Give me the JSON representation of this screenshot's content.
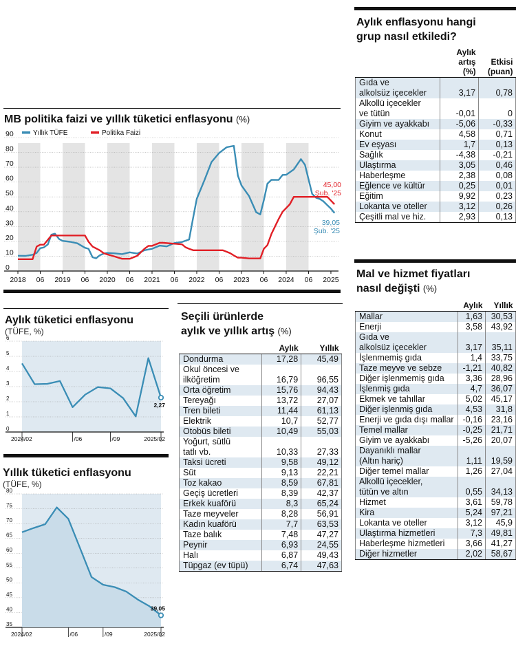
{
  "main_chart": {
    "title": "MB politika faizi ve yıllık tüketici enflasyonu",
    "unit": "(%)",
    "legend": {
      "cpi": "Yıllık TÜFE",
      "policy": "Politika Faizi"
    },
    "annot_policy": {
      "value": "45,00",
      "label": "Şub. '25"
    },
    "annot_cpi": {
      "value": "39,05",
      "label": "Şub. '25"
    }
  },
  "monthly_chart": {
    "title": "Aylık tüketici enflasyonu",
    "unit": "(TÜFE, %)",
    "last_label": "2,27"
  },
  "annual_chart": {
    "title": "Yıllık tüketici enflasyonu",
    "unit": "(TÜFE, %)",
    "last_label": "39,05"
  },
  "chart_data": [
    {
      "type": "line",
      "title": "MB politika faizi ve yıllık tüketici enflasyonu (%)",
      "x_ticks": [
        "2018",
        "06",
        "2019",
        "06",
        "2020",
        "06",
        "2021",
        "06",
        "2022",
        "06",
        "2023",
        "06",
        "2024",
        "06",
        "2025"
      ],
      "y_ticks": [
        0,
        10,
        20,
        30,
        40,
        50,
        60,
        70,
        80,
        90
      ],
      "ylim": [
        0,
        90
      ],
      "xlim": [
        2018.0,
        2025.17
      ],
      "series": [
        {
          "name": "Yıllık TÜFE",
          "color": "#3a8db5",
          "points": [
            [
              2018.0,
              10.3
            ],
            [
              2018.17,
              10.2
            ],
            [
              2018.33,
              11
            ],
            [
              2018.42,
              12.2
            ],
            [
              2018.5,
              15.4
            ],
            [
              2018.58,
              15.9
            ],
            [
              2018.67,
              17.9
            ],
            [
              2018.75,
              24.5
            ],
            [
              2018.83,
              25.2
            ],
            [
              2018.92,
              21.6
            ],
            [
              2019.0,
              20.3
            ],
            [
              2019.17,
              19.7
            ],
            [
              2019.33,
              18.7
            ],
            [
              2019.5,
              15.7
            ],
            [
              2019.58,
              15
            ],
            [
              2019.67,
              9.3
            ],
            [
              2019.75,
              8.6
            ],
            [
              2019.83,
              10.6
            ],
            [
              2019.92,
              11.8
            ],
            [
              2020.0,
              12.2
            ],
            [
              2020.17,
              11.9
            ],
            [
              2020.33,
              11.4
            ],
            [
              2020.5,
              12.6
            ],
            [
              2020.67,
              11.8
            ],
            [
              2020.83,
              14
            ],
            [
              2021.0,
              15
            ],
            [
              2021.17,
              17.1
            ],
            [
              2021.33,
              16.6
            ],
            [
              2021.5,
              18.9
            ],
            [
              2021.67,
              19.6
            ],
            [
              2021.83,
              21.3
            ],
            [
              2021.92,
              36.1
            ],
            [
              2022.0,
              48.7
            ],
            [
              2022.17,
              61.1
            ],
            [
              2022.33,
              73.5
            ],
            [
              2022.5,
              79.6
            ],
            [
              2022.67,
              83.5
            ],
            [
              2022.83,
              84.4
            ],
            [
              2022.92,
              64.3
            ],
            [
              2023.0,
              57.7
            ],
            [
              2023.17,
              50.5
            ],
            [
              2023.33,
              39.6
            ],
            [
              2023.42,
              38.2
            ],
            [
              2023.5,
              47.8
            ],
            [
              2023.58,
              58.9
            ],
            [
              2023.67,
              61.5
            ],
            [
              2023.83,
              61.4
            ],
            [
              2023.92,
              64.8
            ],
            [
              2024.0,
              64.9
            ],
            [
              2024.17,
              68.5
            ],
            [
              2024.33,
              75.5
            ],
            [
              2024.42,
              71.6
            ],
            [
              2024.5,
              61.8
            ],
            [
              2024.58,
              52
            ],
            [
              2024.67,
              49.4
            ],
            [
              2024.75,
              48.6
            ],
            [
              2024.83,
              47.1
            ],
            [
              2024.92,
              44.4
            ],
            [
              2025.0,
              42.1
            ],
            [
              2025.08,
              39.05
            ]
          ]
        },
        {
          "name": "Politika Faizi",
          "color": "#e11f26",
          "points": [
            [
              2018.0,
              8
            ],
            [
              2018.33,
              8
            ],
            [
              2018.42,
              16.5
            ],
            [
              2018.5,
              17.75
            ],
            [
              2018.58,
              17.75
            ],
            [
              2018.75,
              24
            ],
            [
              2019.0,
              24
            ],
            [
              2019.5,
              24
            ],
            [
              2019.58,
              19.75
            ],
            [
              2019.67,
              16.5
            ],
            [
              2019.83,
              14
            ],
            [
              2019.92,
              12
            ],
            [
              2020.0,
              11.25
            ],
            [
              2020.17,
              9.75
            ],
            [
              2020.33,
              8.25
            ],
            [
              2020.5,
              8.25
            ],
            [
              2020.67,
              10.25
            ],
            [
              2020.83,
              15
            ],
            [
              2020.92,
              17
            ],
            [
              2021.0,
              17
            ],
            [
              2021.17,
              19
            ],
            [
              2021.25,
              19
            ],
            [
              2021.67,
              18
            ],
            [
              2021.75,
              16
            ],
            [
              2021.83,
              15
            ],
            [
              2021.92,
              14
            ],
            [
              2022.0,
              14
            ],
            [
              2022.58,
              14
            ],
            [
              2022.67,
              13
            ],
            [
              2022.75,
              12
            ],
            [
              2022.83,
              10.5
            ],
            [
              2022.92,
              9
            ],
            [
              2023.0,
              9
            ],
            [
              2023.17,
              8.5
            ],
            [
              2023.42,
              8.5
            ],
            [
              2023.5,
              15
            ],
            [
              2023.58,
              17.5
            ],
            [
              2023.67,
              25
            ],
            [
              2023.75,
              30
            ],
            [
              2023.83,
              35
            ],
            [
              2023.92,
              40
            ],
            [
              2024.0,
              42.5
            ],
            [
              2024.08,
              45
            ],
            [
              2024.17,
              50
            ],
            [
              2024.92,
              50
            ],
            [
              2025.0,
              47.5
            ],
            [
              2025.08,
              45
            ]
          ]
        }
      ]
    },
    {
      "type": "line",
      "title": "Aylık tüketici enflasyonu (TÜFE, %)",
      "x_ticks": [
        "2024/02",
        "/06",
        "/09",
        "2025/02"
      ],
      "y_ticks": [
        0,
        1.0,
        2.0,
        3.0,
        4.0,
        5.0,
        6.0
      ],
      "ylim": [
        0,
        6
      ],
      "series": [
        {
          "name": "Aylık TÜFE",
          "values": [
            4.53,
            3.16,
            3.18,
            3.37,
            1.64,
            2.47,
            2.97,
            2.88,
            2.24,
            1.03,
            4.88,
            2.27
          ]
        }
      ]
    },
    {
      "type": "area",
      "title": "Yıllık tüketici enflasyonu (TÜFE, %)",
      "x_ticks": [
        "2024/02",
        "/06",
        "/09",
        "2025/02"
      ],
      "y_ticks": [
        35.0,
        40.0,
        45.0,
        50.0,
        55.0,
        60.0,
        65.0,
        70.0,
        75.0,
        80.0
      ],
      "ylim": [
        35,
        80
      ],
      "series": [
        {
          "name": "Yıllık TÜFE",
          "values": [
            67.07,
            68.5,
            69.8,
            75.45,
            71.6,
            61.78,
            51.97,
            49.38,
            48.58,
            47.09,
            44.38,
            42.12,
            39.05
          ]
        }
      ]
    }
  ],
  "table_groups": {
    "title1": "Aylık enflasyonu hangi",
    "title2": "grup nasıl etkiledi?",
    "col1": [
      "Aylık",
      "artış (%)"
    ],
    "col2": [
      "Etkisi",
      "(puan)"
    ],
    "rows": [
      {
        "label": [
          "Gıda ve",
          "alkolsüz içecekler"
        ],
        "a": "3,17",
        "b": "0,78"
      },
      {
        "label": [
          "Alkollü içecekler",
          "ve tütün"
        ],
        "a": "-0,01",
        "b": "0"
      },
      {
        "label": [
          "Giyim ve ayakkabı"
        ],
        "a": "-5,06",
        "b": "-0,33"
      },
      {
        "label": [
          "Konut"
        ],
        "a": "4,58",
        "b": "0,71"
      },
      {
        "label": [
          "Ev eşyası"
        ],
        "a": "1,7",
        "b": "0,13"
      },
      {
        "label": [
          "Sağlık"
        ],
        "a": "-4,38",
        "b": "-0,21"
      },
      {
        "label": [
          "Ulaştırma"
        ],
        "a": "3,05",
        "b": "0,46"
      },
      {
        "label": [
          "Haberleşme"
        ],
        "a": "2,38",
        "b": "0,08"
      },
      {
        "label": [
          "Eğlence ve kültür"
        ],
        "a": "0,25",
        "b": "0,01"
      },
      {
        "label": [
          "Eğitim"
        ],
        "a": "9,92",
        "b": "0,23"
      },
      {
        "label": [
          "Lokanta ve oteller"
        ],
        "a": "3,12",
        "b": "0,26"
      },
      {
        "label": [
          "Çeşitli mal ve hiz."
        ],
        "a": "2,93",
        "b": "0,13"
      }
    ]
  },
  "table_goods": {
    "title1": "Mal ve hizmet fiyatları",
    "title2": "nasıl değişti",
    "unit": "(%)",
    "col1": "Aylık",
    "col2": "Yıllık",
    "rows": [
      {
        "label": [
          "Mallar"
        ],
        "a": "1,63",
        "b": "30,53"
      },
      {
        "label": [
          "Enerji"
        ],
        "a": "3,58",
        "b": "43,92"
      },
      {
        "label": [
          "Gıda ve",
          "alkolsüz içecekler"
        ],
        "a": "3,17",
        "b": "35,11"
      },
      {
        "label": [
          "İşlenmemiş gıda"
        ],
        "a": "1,4",
        "b": "33,75"
      },
      {
        "label": [
          "Taze meyve ve sebze"
        ],
        "a": "-1,21",
        "b": "40,82"
      },
      {
        "label": [
          "Diğer işlenmemiş gıda"
        ],
        "a": "3,36",
        "b": "28,96"
      },
      {
        "label": [
          "İşlenmiş gıda"
        ],
        "a": "4,7",
        "b": "36,07"
      },
      {
        "label": [
          "Ekmek ve tahıllar"
        ],
        "a": "5,02",
        "b": "45,17"
      },
      {
        "label": [
          "Diğer işlenmiş gıda"
        ],
        "a": "4,53",
        "b": "31,8"
      },
      {
        "label": [
          "Enerji ve gıda dışı mallar"
        ],
        "a": "-0,16",
        "b": "23,16"
      },
      {
        "label": [
          "Temel mallar"
        ],
        "a": "-0,25",
        "b": "21,71"
      },
      {
        "label": [
          "Giyim ve ayakkabı"
        ],
        "a": "-5,26",
        "b": "20,07"
      },
      {
        "label": [
          "Dayanıklı mallar",
          "(Altın hariç)"
        ],
        "a": "1,11",
        "b": "19,59"
      },
      {
        "label": [
          "Diğer temel mallar"
        ],
        "a": "1,26",
        "b": "27,04"
      },
      {
        "label": [
          "Alkollü içecekler,",
          "tütün ve altın"
        ],
        "a": "0,55",
        "b": "34,13"
      },
      {
        "label": [
          "Hizmet"
        ],
        "a": "3,61",
        "b": "59,78"
      },
      {
        "label": [
          "Kira"
        ],
        "a": "5,24",
        "b": "97,21"
      },
      {
        "label": [
          "Lokanta ve oteller"
        ],
        "a": "3,12",
        "b": "45,9"
      },
      {
        "label": [
          "Ulaştırma hizmetleri"
        ],
        "a": "7,3",
        "b": "49,81"
      },
      {
        "label": [
          "Haberleşme hizmetleri"
        ],
        "a": "3,66",
        "b": "41,27"
      },
      {
        "label": [
          "Diğer hizmetler"
        ],
        "a": "2,02",
        "b": "58,67"
      }
    ]
  },
  "table_products": {
    "title1": "Seçili ürünlerde",
    "title2": "aylık ve yıllık artış",
    "unit": "(%)",
    "col1": "Aylık",
    "col2": "Yıllık",
    "rows": [
      {
        "label": [
          "Dondurma"
        ],
        "a": "17,28",
        "b": "45,49"
      },
      {
        "label": [
          "Okul öncesi ve",
          "ilköğretim"
        ],
        "a": "16,79",
        "b": "96,55"
      },
      {
        "label": [
          "Orta öğretim"
        ],
        "a": "15,76",
        "b": "94,43"
      },
      {
        "label": [
          "Tereyağı"
        ],
        "a": "13,72",
        "b": "27,07"
      },
      {
        "label": [
          "Tren bileti"
        ],
        "a": "11,44",
        "b": "61,13"
      },
      {
        "label": [
          "Elektrik"
        ],
        "a": "10,7",
        "b": "52,77"
      },
      {
        "label": [
          "Otobüs bileti"
        ],
        "a": "10,49",
        "b": "55,03"
      },
      {
        "label": [
          "Yoğurt, sütlü",
          "tatlı vb."
        ],
        "a": "10,33",
        "b": "27,33"
      },
      {
        "label": [
          "Taksi ücreti"
        ],
        "a": "9,58",
        "b": "49,12"
      },
      {
        "label": [
          "Süt"
        ],
        "a": "9,13",
        "b": "22,21"
      },
      {
        "label": [
          "Toz kakao"
        ],
        "a": "8,59",
        "b": "67,81"
      },
      {
        "label": [
          "Geçiş ücretleri"
        ],
        "a": "8,39",
        "b": "42,37"
      },
      {
        "label": [
          "Erkek kuaförü"
        ],
        "a": "8,3",
        "b": "65,24"
      },
      {
        "label": [
          "Taze meyveler"
        ],
        "a": "8,28",
        "b": "56,91"
      },
      {
        "label": [
          "Kadın kuaförü"
        ],
        "a": "7,7",
        "b": "63,53"
      },
      {
        "label": [
          "Taze balık"
        ],
        "a": "7,48",
        "b": "47,27"
      },
      {
        "label": [
          "Peynir"
        ],
        "a": "6,93",
        "b": "24,55"
      },
      {
        "label": [
          "Halı"
        ],
        "a": "6,87",
        "b": "49,43"
      },
      {
        "label": [
          "Tüpgaz (ev tüpü)"
        ],
        "a": "6,74",
        "b": "47,63"
      }
    ]
  }
}
